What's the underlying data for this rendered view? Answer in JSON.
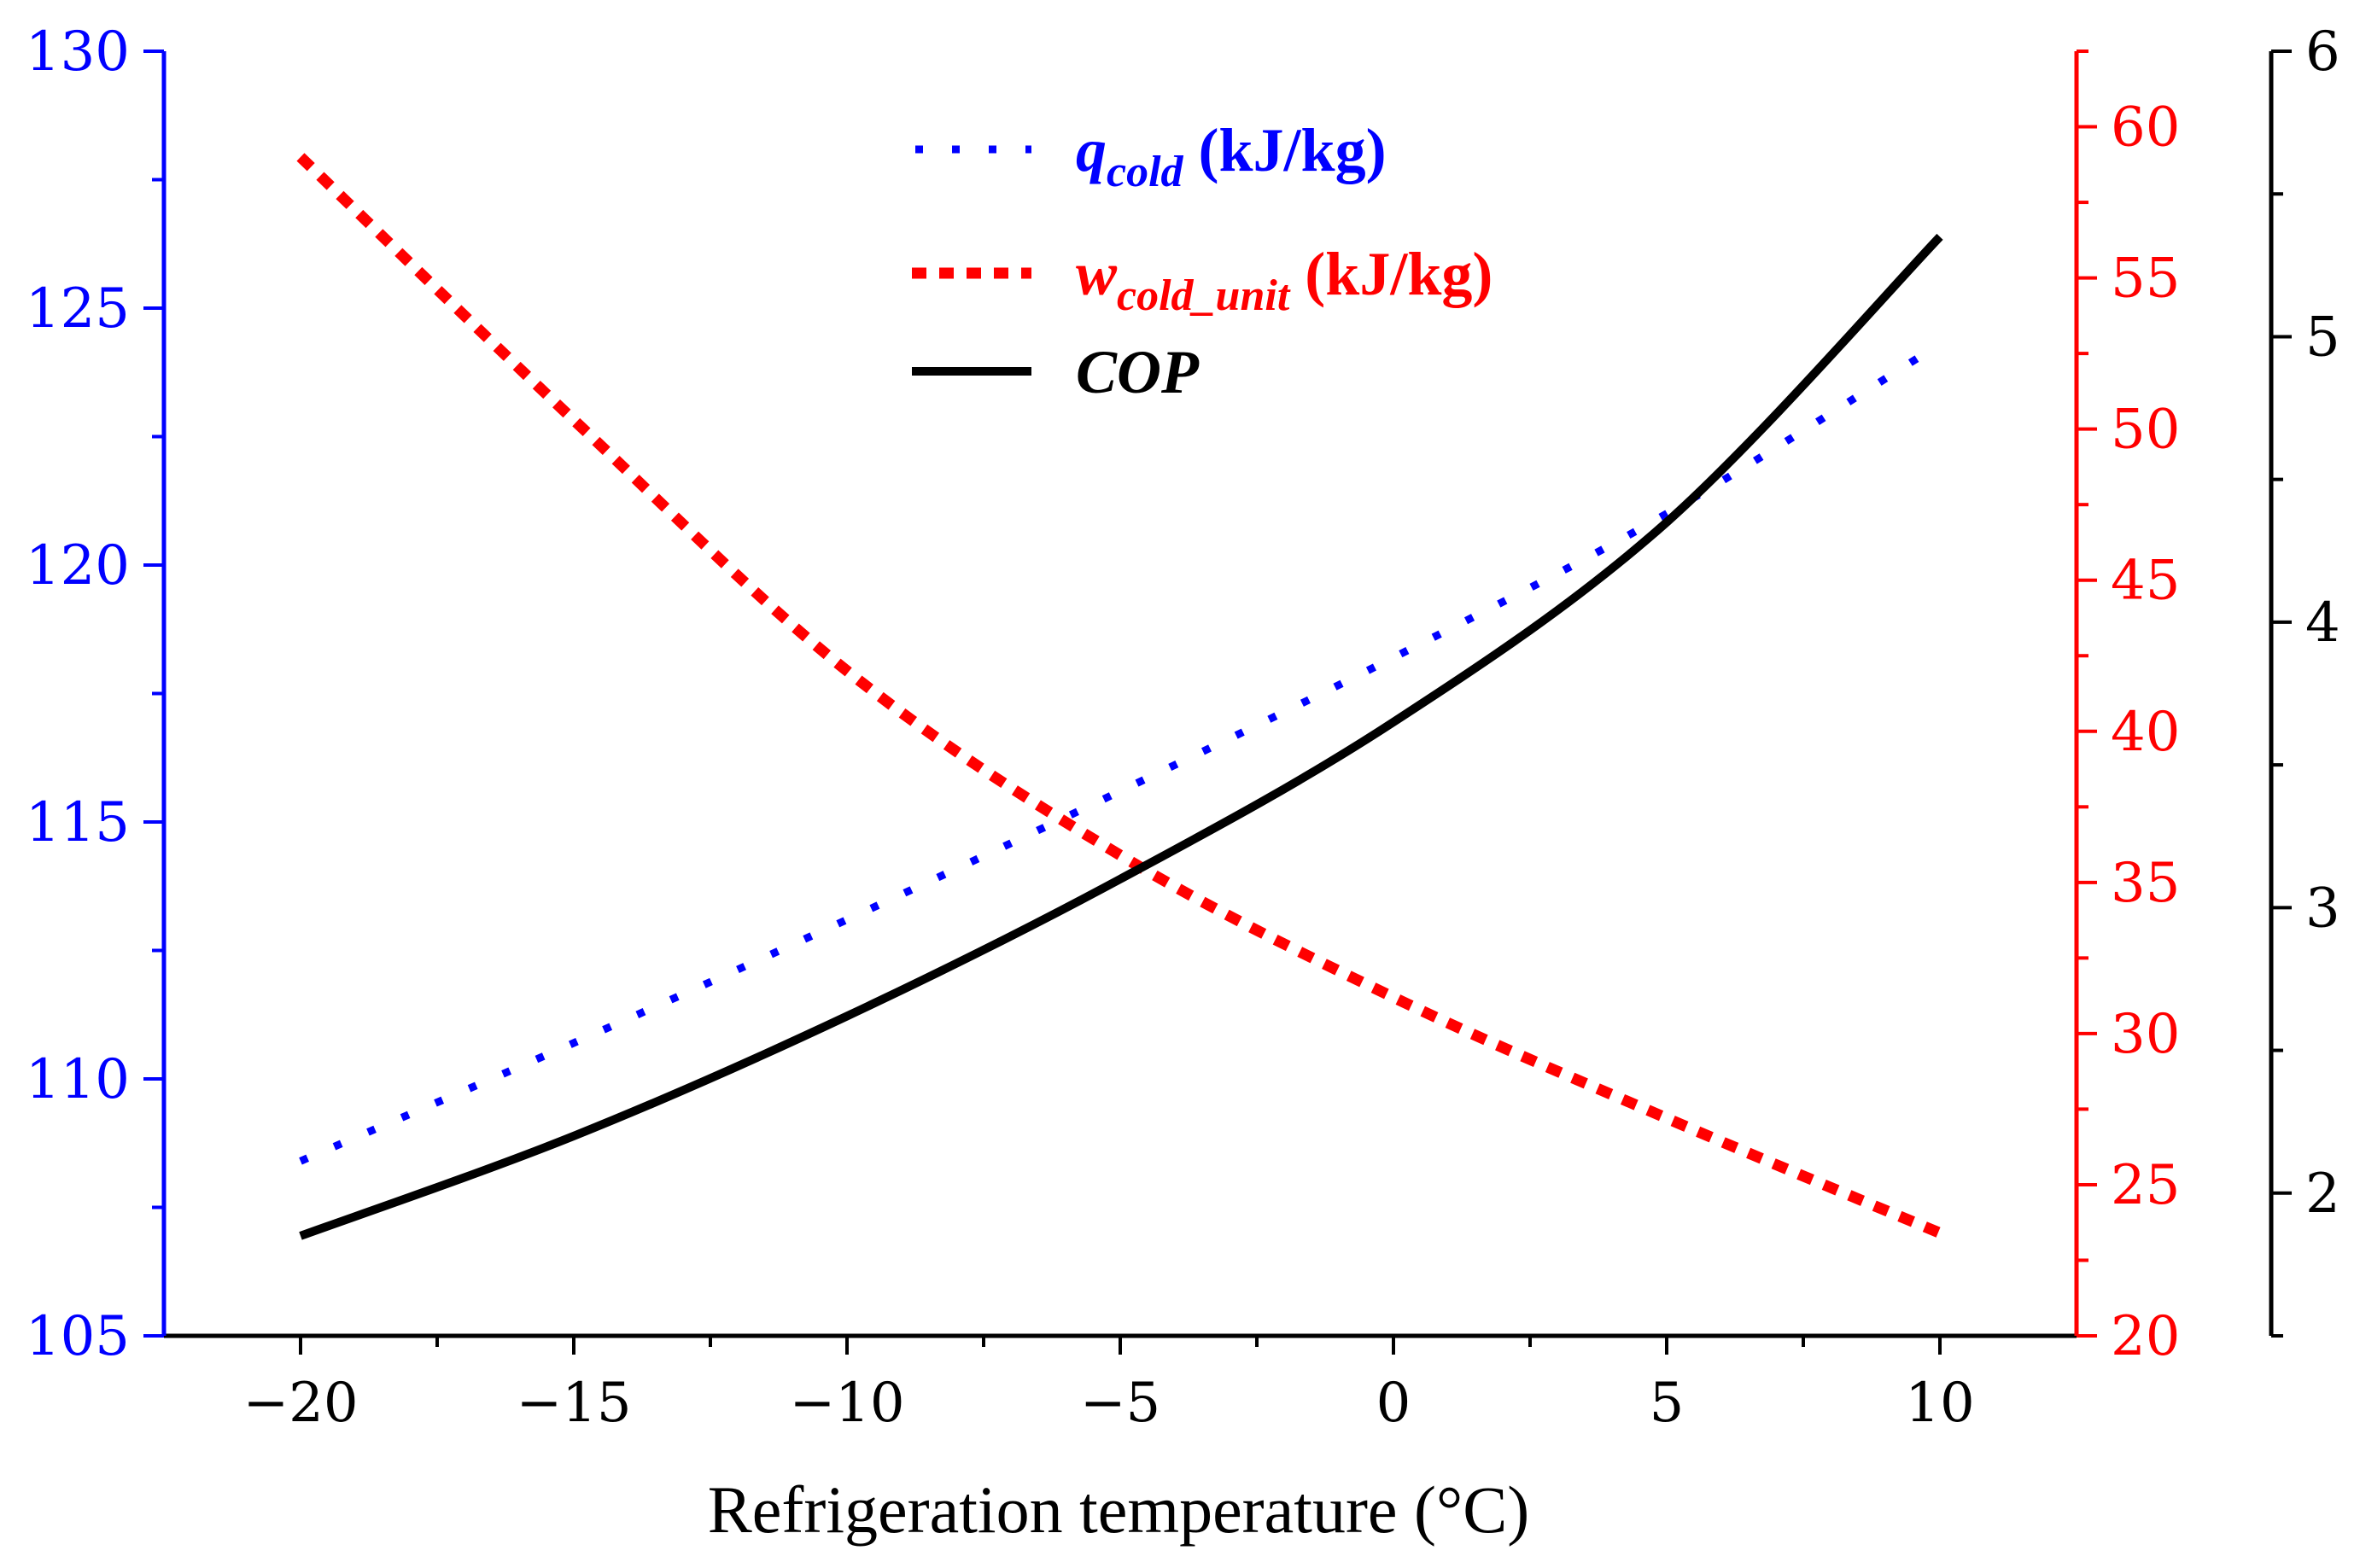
{
  "chart_data": {
    "type": "line",
    "xlabel": "Refrigeration temperature (°C)",
    "xlim": [
      -22.5,
      12.5
    ],
    "x_ticks": [
      -20,
      -15,
      -10,
      -5,
      0,
      5,
      10
    ],
    "x_tick_labels": [
      "−20",
      "−15",
      "−10",
      "−5",
      "0",
      "5",
      "10"
    ],
    "axes": {
      "left": {
        "color": "#0000ff",
        "ylim": [
          105,
          130
        ],
        "ticks": [
          105,
          110,
          115,
          120,
          125,
          130
        ]
      },
      "right1": {
        "color": "#ff0000",
        "ylim": [
          20,
          62.5
        ],
        "ticks": [
          20,
          25,
          30,
          35,
          40,
          45,
          50,
          55,
          60
        ]
      },
      "right2": {
        "color": "#000000",
        "ylim": [
          1.5,
          6
        ],
        "ticks": [
          2,
          3,
          4,
          5,
          6
        ]
      }
    },
    "x": [
      -20,
      -15,
      -10,
      -5,
      0,
      5,
      10
    ],
    "series": [
      {
        "name": "q_cold (kJ/kg)",
        "legend_main": "q",
        "legend_sub": "cold",
        "legend_unit": " (kJ/kg)",
        "axis": "left",
        "color": "#0000ff",
        "style": "dotted",
        "values": [
          108.4,
          110.7,
          113.1,
          115.6,
          118.2,
          121.0,
          124.3
        ]
      },
      {
        "name": "w_cold_unit (kJ/kg)",
        "legend_main": "w",
        "legend_sub": "cold_unit",
        "legend_unit": " (kJ/kg)",
        "axis": "right1",
        "color": "#ff0000",
        "style": "dashed",
        "values": [
          59.0,
          50.3,
          42.0,
          35.9,
          31.2,
          27.2,
          23.4
        ]
      },
      {
        "name": "COP",
        "legend_main": "COP",
        "legend_sub": "",
        "legend_unit": "",
        "axis": "right2",
        "color": "#000000",
        "style": "solid",
        "values": [
          1.85,
          2.2,
          2.62,
          3.1,
          3.65,
          4.35,
          5.35
        ]
      }
    ]
  }
}
